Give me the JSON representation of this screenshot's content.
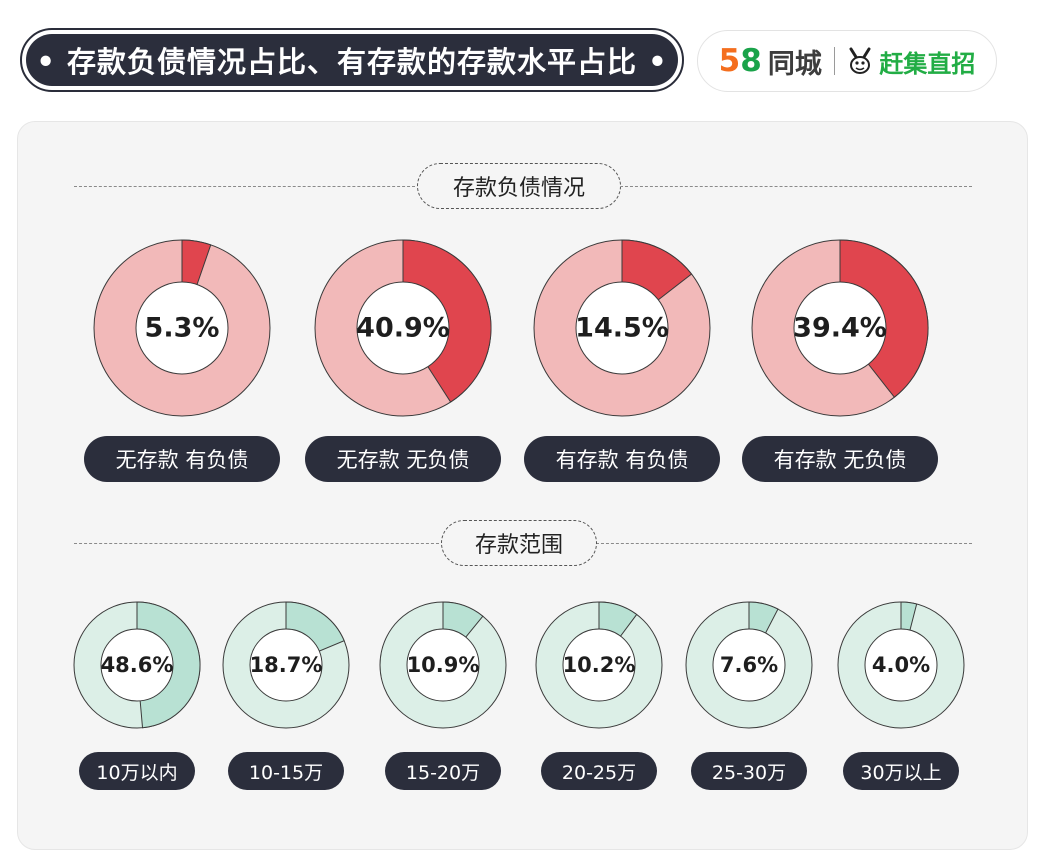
{
  "header": {
    "title": "• 存款负债情况占比、有存款的存款水平占比 •",
    "logo_58_part1": "5",
    "logo_58_part2": "8",
    "logo_tongcheng": "同城",
    "logo_ganji": "赶集直招"
  },
  "colors": {
    "debt_highlight": "#e0454e",
    "debt_base": "#f2b9b9",
    "range_highlight": "#b8e1d3",
    "range_base": "#dcefe7"
  },
  "chart_data": [
    {
      "type": "pie",
      "title": "存款负债情况",
      "categories": [
        "无存款 有负债",
        "无存款 无负债",
        "有存款 有负债",
        "有存款 无负债"
      ],
      "values": [
        5.3,
        40.9,
        14.5,
        39.4
      ],
      "value_labels": [
        "5.3%",
        "40.9%",
        "14.5%",
        "39.4%"
      ],
      "unit": "%"
    },
    {
      "type": "pie",
      "title": "存款范围",
      "categories": [
        "10万以内",
        "10-15万",
        "15-20万",
        "20-25万",
        "25-30万",
        "30万以上"
      ],
      "values": [
        48.6,
        18.7,
        10.9,
        10.2,
        7.6,
        4.0
      ],
      "value_labels": [
        "48.6%",
        "18.7%",
        "10.9%",
        "10.2%",
        "7.6%",
        "4.0%"
      ],
      "unit": "%"
    }
  ]
}
